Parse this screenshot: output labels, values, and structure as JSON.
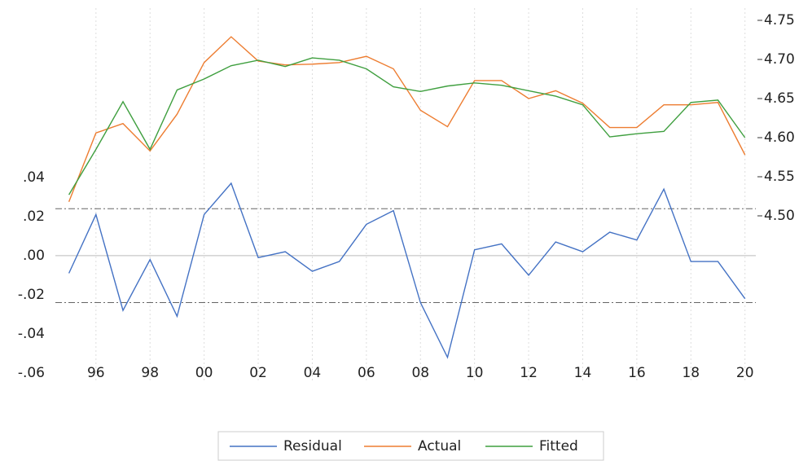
{
  "chart_data": {
    "type": "line",
    "x": [
      1995,
      1996,
      1997,
      1998,
      1999,
      2000,
      2001,
      2002,
      2003,
      2004,
      2005,
      2006,
      2007,
      2008,
      2009,
      2010,
      2011,
      2012,
      2013,
      2014,
      2015,
      2016,
      2017,
      2018,
      2019,
      2020
    ],
    "xlim": [
      1994.5,
      2020.4
    ],
    "xticks": [
      {
        "value": 1996,
        "label": "96"
      },
      {
        "value": 1998,
        "label": "98"
      },
      {
        "value": 2000,
        "label": "00"
      },
      {
        "value": 2002,
        "label": "02"
      },
      {
        "value": 2004,
        "label": "04"
      },
      {
        "value": 2006,
        "label": "06"
      },
      {
        "value": 2008,
        "label": "08"
      },
      {
        "value": 2010,
        "label": "10"
      },
      {
        "value": 2012,
        "label": "12"
      },
      {
        "value": 2014,
        "label": "14"
      },
      {
        "value": 2016,
        "label": "16"
      },
      {
        "value": 2018,
        "label": "18"
      },
      {
        "value": 2020,
        "label": "20"
      }
    ],
    "ylim": [
      -0.065,
      0.1265
    ],
    "yticks": [
      {
        "value": 0.04,
        "label": ".04"
      },
      {
        "value": 0.02,
        "label": ".02"
      },
      {
        "value": 0,
        "label": ".00"
      },
      {
        "value": -0.02,
        "label": "-.02"
      },
      {
        "value": -0.04,
        "label": "-.04"
      },
      {
        "value": -0.06,
        "label": "-.06"
      }
    ],
    "y2lim": [
      4.2865,
      4.7656
    ],
    "y2ticks": [
      4.75,
      {
        "value": 4.7,
        "label": "4.70"
      },
      4.65,
      {
        "value": 4.6,
        "label": "4.60"
      },
      4.55,
      {
        "value": 4.5,
        "label": "4.50"
      }
    ],
    "hlines": [
      {
        "value": 0.024,
        "style": "dashed"
      },
      {
        "value": 0,
        "style": "solid"
      },
      {
        "value": -0.024,
        "style": "dashed"
      }
    ],
    "grid": true,
    "legend": "bottom",
    "series": [
      {
        "name": "Residual",
        "color": "#4472c4",
        "values": [
          -0.009,
          0.021,
          -0.028,
          -0.002,
          -0.031,
          0.021,
          0.037,
          -0.001,
          0.002,
          -0.008,
          -0.003,
          0.016,
          0.023,
          -0.024,
          -0.052,
          0.003,
          0.006,
          -0.01,
          0.007,
          0.002,
          0.012,
          0.008,
          0.034,
          -0.003,
          -0.003,
          -0.022
        ]
      },
      {
        "name": "Actual",
        "color": "#ed7d31",
        "axis": "y2",
        "values": [
          4.518,
          4.606,
          4.618,
          4.583,
          4.63,
          4.696,
          4.729,
          4.698,
          4.693,
          4.694,
          4.696,
          4.704,
          4.688,
          4.635,
          4.614,
          4.673,
          4.673,
          4.65,
          4.66,
          4.644,
          4.613,
          4.613,
          4.642,
          4.642,
          4.645,
          4.578
        ]
      },
      {
        "name": "Fitted",
        "color": "#3f9f3f",
        "axis": "y2",
        "values": [
          4.527,
          4.585,
          4.646,
          4.585,
          4.661,
          4.675,
          4.692,
          4.699,
          4.691,
          4.702,
          4.699,
          4.688,
          4.665,
          4.659,
          4.666,
          4.67,
          4.667,
          4.66,
          4.653,
          4.642,
          4.601,
          4.605,
          4.608,
          4.645,
          4.648,
          4.6
        ]
      }
    ]
  }
}
